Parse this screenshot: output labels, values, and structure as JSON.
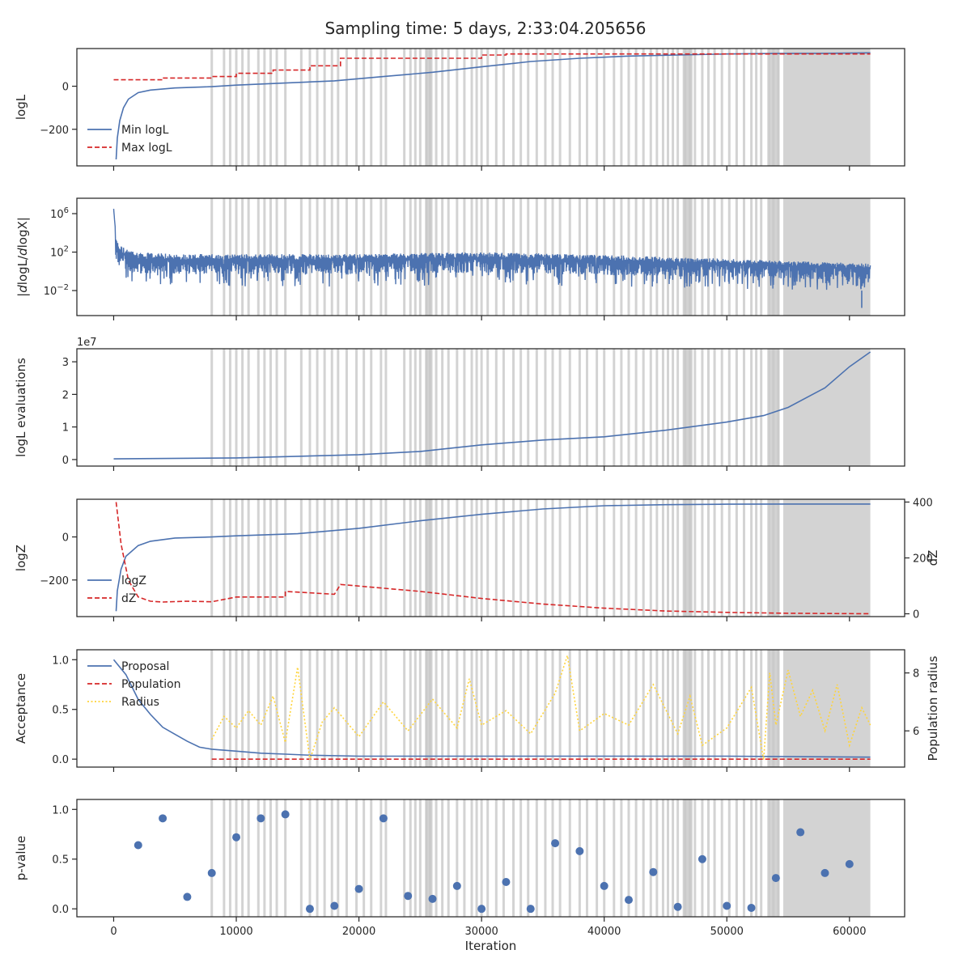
{
  "title": "Sampling time: 5 days, 2:33:04.205656",
  "colors": {
    "blue": "#4c72b0",
    "red": "#d62728",
    "yellow": "#ffd43b",
    "band": "#c8c8c8",
    "axis": "#262626"
  },
  "chart_data": [
    {
      "type": "line",
      "ylabel": "logL",
      "xlim": [
        -3000,
        64500
      ],
      "ylim": [
        -370,
        175
      ],
      "yticks": [
        0,
        -200
      ],
      "yticklabels": [
        "0",
        "−200"
      ],
      "legend": "lower-left",
      "series": [
        {
          "name": "Min logL",
          "style": "solid",
          "color": "#4c72b0",
          "x": [
            200,
            300,
            500,
            800,
            1200,
            2000,
            3000,
            5000,
            8000,
            10000,
            14000,
            18000,
            22000,
            26000,
            30000,
            34000,
            38000,
            42000,
            46000,
            50000,
            54000,
            58000,
            61700
          ],
          "y": [
            -340,
            -240,
            -160,
            -100,
            -60,
            -30,
            -18,
            -8,
            -2,
            5,
            15,
            25,
            45,
            65,
            90,
            115,
            130,
            140,
            145,
            150,
            152,
            153,
            155
          ]
        },
        {
          "name": "Max logL",
          "style": "dashed",
          "color": "#d62728",
          "x": [
            0,
            4000,
            4000,
            8000,
            8000,
            10000,
            10000,
            13000,
            13000,
            16000,
            16000,
            18500,
            18500,
            30000,
            30000,
            32000,
            32000,
            61700
          ],
          "y": [
            30,
            30,
            38,
            38,
            45,
            45,
            60,
            60,
            75,
            75,
            95,
            95,
            130,
            130,
            145,
            145,
            150,
            150
          ]
        }
      ]
    },
    {
      "type": "line",
      "ylabel": "|dlogL/dlogX|",
      "yscale": "log",
      "xlim": [
        -3000,
        64500
      ],
      "ylim_exp": [
        -4.6,
        7.6
      ],
      "yticks_exp": [
        6,
        2,
        -2
      ],
      "yticklabels": [
        "10^6",
        "10^2",
        "10^−2"
      ],
      "series": [
        {
          "name": "",
          "style": "solid",
          "color": "#4c72b0",
          "x_range": [
            0,
            61700
          ],
          "envelope_exp": {
            "x": [
              0,
              200,
              500,
              1000,
              2000,
              5000,
              10000,
              20000,
              30000,
              40000,
              50000,
              61700
            ],
            "center": [
              5,
              2.6,
              1.9,
              1.6,
              1.3,
              1.2,
              1.2,
              1.2,
              1.4,
              1.1,
              0.8,
              0.3
            ],
            "upper": [
              6.5,
              3.4,
              2.8,
              2.3,
              2.0,
              1.8,
              1.8,
              1.8,
              2.0,
              1.7,
              1.3,
              0.8
            ],
            "lower": [
              4,
              0,
              -1,
              -1.3,
              -1.5,
              -1.5,
              -1.6,
              -1.6,
              -1.4,
              -1.6,
              -1.8,
              -2.0
            ]
          },
          "spike_min_exp": {
            "x": 61000,
            "y": -3.8
          }
        }
      ]
    },
    {
      "type": "line",
      "ylabel": "logL evaluations",
      "yoffset_label": "1e7",
      "xlim": [
        -3000,
        64500
      ],
      "ylim": [
        -0.2,
        3.4
      ],
      "yticks": [
        0,
        1,
        2,
        3
      ],
      "yticklabels": [
        "0",
        "1",
        "2",
        "3"
      ],
      "series": [
        {
          "name": "",
          "style": "solid",
          "color": "#4c72b0",
          "x": [
            0,
            10000,
            20000,
            25000,
            30000,
            35000,
            40000,
            45000,
            50000,
            53000,
            55000,
            58000,
            60000,
            61700
          ],
          "y": [
            0.02,
            0.05,
            0.15,
            0.25,
            0.45,
            0.6,
            0.7,
            0.9,
            1.15,
            1.35,
            1.6,
            2.2,
            2.85,
            3.3
          ]
        }
      ]
    },
    {
      "type": "line",
      "ylabel": "logZ",
      "y2label": "dZ",
      "xlim": [
        -3000,
        64500
      ],
      "ylim": [
        -370,
        175
      ],
      "yticks": [
        0,
        -200
      ],
      "yticklabels": [
        "0",
        "−200"
      ],
      "y2lim": [
        -10,
        410
      ],
      "y2ticks": [
        400,
        200,
        0
      ],
      "y2ticklabels": [
        "400",
        "200",
        "0"
      ],
      "legend": "lower-left",
      "series": [
        {
          "name": "logZ",
          "style": "solid",
          "color": "#4c72b0",
          "axis": "left",
          "x": [
            200,
            300,
            600,
            1000,
            2000,
            3000,
            5000,
            8000,
            10000,
            15000,
            20000,
            25000,
            30000,
            35000,
            40000,
            45000,
            50000,
            55000,
            61700
          ],
          "y": [
            -345,
            -250,
            -150,
            -90,
            -40,
            -20,
            -5,
            0,
            5,
            15,
            40,
            75,
            105,
            130,
            145,
            150,
            152,
            153,
            153
          ]
        },
        {
          "name": "dZ",
          "style": "dashed",
          "color": "#d62728",
          "axis": "right",
          "x": [
            200,
            600,
            1200,
            2000,
            3000,
            4000,
            6000,
            8000,
            10000,
            14000,
            14000,
            18000,
            18500,
            25000,
            30000,
            35000,
            40000,
            45000,
            50000,
            55000,
            61700
          ],
          "y": [
            400,
            250,
            120,
            60,
            45,
            42,
            45,
            43,
            60,
            60,
            80,
            70,
            105,
            80,
            55,
            35,
            20,
            10,
            5,
            2,
            0
          ]
        }
      ]
    },
    {
      "type": "line",
      "ylabel": "Acceptance",
      "y2label": "Population radius",
      "xlim": [
        -3000,
        64500
      ],
      "ylim": [
        -0.08,
        1.1
      ],
      "yticks": [
        0.0,
        0.5,
        1.0
      ],
      "yticklabels": [
        "0.0",
        "0.5",
        "1.0"
      ],
      "y2lim": [
        4.75,
        8.8
      ],
      "y2ticks": [
        8,
        6
      ],
      "y2ticklabels": [
        "8",
        "6"
      ],
      "legend": "upper-left",
      "series": [
        {
          "name": "Proposal",
          "style": "solid",
          "color": "#4c72b0",
          "axis": "left",
          "x": [
            0,
            1000,
            2000,
            3000,
            4000,
            5000,
            6000,
            7000,
            8000,
            10000,
            12000,
            14000,
            16000,
            20000,
            30000,
            40000,
            50000,
            61700
          ],
          "y": [
            1.0,
            0.85,
            0.6,
            0.45,
            0.32,
            0.25,
            0.18,
            0.12,
            0.1,
            0.08,
            0.06,
            0.05,
            0.04,
            0.03,
            0.03,
            0.03,
            0.03,
            0.02
          ]
        },
        {
          "name": "Population",
          "style": "dashed",
          "color": "#d62728",
          "axis": "left",
          "x": [
            8000,
            61700
          ],
          "y": [
            0.0,
            0.0
          ]
        },
        {
          "name": "Radius",
          "style": "dotted",
          "color": "#ffd43b",
          "axis": "right",
          "x": [
            8000,
            9000,
            10000,
            11000,
            12000,
            13000,
            14000,
            15000,
            16000,
            17000,
            18000,
            20000,
            22000,
            24000,
            26000,
            28000,
            29000,
            30000,
            32000,
            34000,
            36000,
            37000,
            38000,
            40000,
            42000,
            44000,
            46000,
            47000,
            48000,
            50000,
            52000,
            53000,
            53500,
            54000,
            55000,
            56000,
            57000,
            58000,
            59000,
            60000,
            61000,
            61700
          ],
          "y": [
            5.7,
            6.5,
            6.1,
            6.7,
            6.2,
            7.2,
            5.6,
            8.2,
            5.0,
            6.3,
            6.8,
            5.8,
            7.0,
            6.0,
            7.1,
            6.1,
            7.8,
            6.2,
            6.7,
            5.9,
            7.3,
            8.6,
            6.0,
            6.6,
            6.2,
            7.6,
            5.9,
            7.2,
            5.5,
            6.1,
            7.5,
            5.0,
            8.0,
            6.2,
            8.1,
            6.5,
            7.4,
            6.0,
            7.6,
            5.5,
            6.8,
            6.2
          ]
        }
      ]
    },
    {
      "type": "scatter",
      "ylabel": "p-value",
      "xlabel": "Iteration",
      "xlim": [
        -3000,
        64500
      ],
      "ylim": [
        -0.08,
        1.1
      ],
      "yticks": [
        0.0,
        0.5,
        1.0
      ],
      "yticklabels": [
        "0.0",
        "0.5",
        "1.0"
      ],
      "xticks": [
        0,
        10000,
        20000,
        30000,
        40000,
        50000,
        60000
      ],
      "xticklabels": [
        "0",
        "10000",
        "20000",
        "30000",
        "40000",
        "50000",
        "60000"
      ],
      "series": [
        {
          "name": "",
          "color": "#4c72b0",
          "x": [
            2000,
            4000,
            6000,
            8000,
            10000,
            12000,
            14000,
            16000,
            18000,
            20000,
            22000,
            24000,
            26000,
            28000,
            30000,
            32000,
            34000,
            36000,
            38000,
            40000,
            42000,
            44000,
            46000,
            48000,
            50000,
            52000,
            54000,
            56000,
            58000,
            60000
          ],
          "y": [
            0.64,
            0.91,
            0.12,
            0.36,
            0.72,
            0.91,
            0.95,
            0.0,
            0.03,
            0.2,
            0.91,
            0.13,
            0.1,
            0.23,
            0.0,
            0.27,
            0.0,
            0.66,
            0.58,
            0.23,
            0.09,
            0.37,
            0.02,
            0.5,
            0.03,
            0.01,
            0.31,
            0.77,
            0.36,
            0.45
          ]
        }
      ]
    }
  ],
  "bands": {
    "x": [
      8000,
      9000,
      9500,
      10000,
      10500,
      11000,
      11800,
      12300,
      12800,
      13300,
      14000,
      15300,
      16000,
      16600,
      17200,
      17800,
      18300,
      19000,
      19800,
      20400,
      21000,
      21800,
      22200,
      23700,
      24200,
      24600,
      25000,
      25500,
      25800,
      26300,
      26800,
      27300,
      28000,
      28600,
      29200,
      29600,
      30000,
      30500,
      31200,
      31800,
      32600,
      33200,
      33800,
      34500,
      35200,
      35800,
      36400,
      37200,
      38000,
      38600,
      39400,
      40000,
      40800,
      41400,
      42000,
      42600,
      43200,
      43800,
      44300,
      44800,
      45200,
      45600,
      46000,
      46600,
      47000,
      47400,
      48000,
      48500,
      49000,
      49600,
      50200,
      50800,
      51400,
      52000,
      52400,
      52800,
      53400,
      53800,
      54200
    ],
    "spans": [
      [
        25400,
        26000
      ],
      [
        46400,
        47200
      ],
      [
        53400,
        54300
      ],
      [
        54600,
        61700
      ]
    ]
  }
}
